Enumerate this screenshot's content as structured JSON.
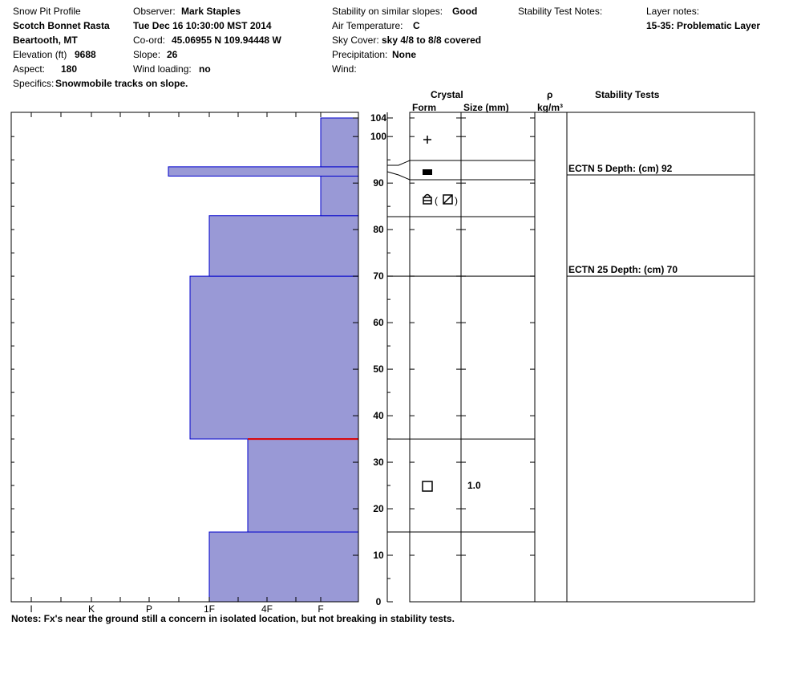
{
  "header": {
    "profile_label": "Snow Pit Profile",
    "pit_name": "Scotch Bonnet Rasta",
    "location": "Beartooth, MT",
    "elevation_label": "Elevation (ft)",
    "elevation_value": "9688",
    "aspect_label": "Aspect:",
    "aspect_value": "180",
    "specifics_label": "Specifics:",
    "specifics_value": "Snowmobile tracks on slope.",
    "observer_label": "Observer:",
    "observer_value": "Mark Staples",
    "date_value": "Tue Dec 16 10:30:00 MST 2014",
    "coord_label": "Co-ord:",
    "coord_value": "45.06955 N 109.94448 W",
    "slope_label": "Slope:",
    "slope_value": "26",
    "wind_loading_label": "Wind loading:",
    "wind_loading_value": "no",
    "stability_label": "Stability on similar slopes:",
    "stability_value": "Good",
    "air_temp_label": "Air Temperature:",
    "air_temp_value": "C",
    "sky_label": "Sky Cover:",
    "sky_value": "sky 4/8 to 8/8 covered",
    "precip_label": "Precipitation:",
    "precip_value": "None",
    "wind_label": "Wind:",
    "stability_notes_label": "Stability Test Notes:",
    "layer_notes_label": "Layer notes:",
    "layer_notes_value": "15-35: Problematic Layer"
  },
  "columns": {
    "crystal": "Crystal",
    "form": "Form",
    "size": "Size (mm)",
    "rho": "ρ",
    "density_unit": "kg/m³",
    "stability_tests": "Stability Tests"
  },
  "notes": "Notes:  Fx's near the ground still a concern in isolated location, but not breaking in stability tests.",
  "chart_data": {
    "type": "bar",
    "title": "Snow Pit Profile",
    "y_axis": {
      "label": "",
      "range": [
        0,
        104
      ],
      "ticks": [
        0,
        10,
        20,
        30,
        40,
        50,
        60,
        70,
        80,
        90,
        100,
        104
      ]
    },
    "hardness_scale": [
      "I",
      "K",
      "P",
      "1F",
      "4F",
      "F"
    ],
    "hardness_profile": [
      {
        "bottom": 0,
        "top": 15,
        "hardness": "1F"
      },
      {
        "bottom": 15,
        "top": 35,
        "hardness": "4F+"
      },
      {
        "bottom": 35,
        "top": 70,
        "hardness": "1F+"
      },
      {
        "bottom": 70,
        "top": 83,
        "hardness": "1F"
      },
      {
        "bottom": 83,
        "top": 91.5,
        "hardness": "F"
      },
      {
        "bottom": 91.5,
        "top": 93.5,
        "hardness": "P-"
      },
      {
        "bottom": 93.5,
        "top": 104,
        "hardness": "F"
      }
    ],
    "problem_layer_depth": 35,
    "layer_boundaries": [
      15,
      35,
      70,
      83,
      91,
      95
    ],
    "crystal_forms": [
      {
        "depth": 99,
        "symbol": "+"
      },
      {
        "depth": 92,
        "symbol": "■"
      },
      {
        "depth": 86,
        "symbol": "a(ø)"
      },
      {
        "depth": 25,
        "symbol": "□",
        "size": "1.0"
      }
    ],
    "stability_tests": [
      {
        "depth": 92,
        "label": "ECTN 5   Depth: (cm) 92"
      },
      {
        "depth": 70,
        "label": "ECTN 25   Depth: (cm) 70"
      }
    ],
    "colors": {
      "layer_fill": "#9999d6",
      "layer_stroke": "#0000cc",
      "problem_line": "#dd0000"
    }
  }
}
